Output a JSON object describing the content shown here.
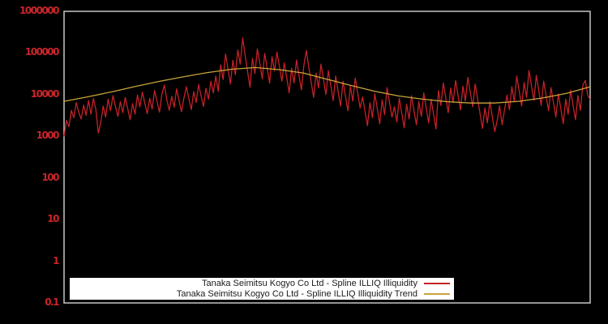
{
  "chart_data": {
    "type": "line",
    "title": "",
    "xlabel": "",
    "ylabel": "",
    "y_scale": "log",
    "ylim": [
      0.1,
      1000000
    ],
    "x_axis_labels_visible": false,
    "grid": false,
    "yticks": [
      "1000000",
      "100000",
      "10000",
      "1000",
      "100",
      "10",
      "1",
      "0.1"
    ],
    "colors": {
      "background": "#000000",
      "frame": "#c6c6c6",
      "tick_label": "#c9252b",
      "series_red": "#c52127",
      "series_trend": "#c9a43a",
      "legend_background": "#ffffff",
      "legend_text": "#1a1a1a"
    },
    "legend": {
      "position": "bottom-center",
      "background": "#ffffff",
      "entries": [
        {
          "label": "Tanaka Seimitsu Kogyo Co Ltd - Spline ILLIQ Illiquidity",
          "color": "#c52127"
        },
        {
          "label": "Tanaka Seimitsu Kogyo Co Ltd - Spline ILLIQ Illiquidity Trend",
          "color": "#c9a43a"
        }
      ]
    },
    "series": [
      {
        "name": "Tanaka Seimitsu Kogyo Co Ltd - Spline ILLIQ Illiquidity",
        "color": "#c52127",
        "stroke_width": 1.3,
        "values": [
          1000,
          2400,
          1700,
          4200,
          2800,
          6500,
          3800,
          2600,
          5600,
          3200,
          7200,
          3400,
          8100,
          4400,
          1200,
          2100,
          5300,
          2900,
          7800,
          4100,
          9500,
          5200,
          3000,
          6800,
          3700,
          8600,
          4700,
          2500,
          6100,
          3400,
          9800,
          5100,
          11500,
          6300,
          3500,
          8200,
          4500,
          12600,
          6900,
          3800,
          10400,
          17000,
          7500,
          4200,
          9100,
          5000,
          13800,
          7200,
          3900,
          8400,
          15500,
          8000,
          4400,
          11800,
          6500,
          17600,
          9400,
          5200,
          14200,
          7800,
          21000,
          11000,
          28000,
          12000,
          52000,
          23000,
          95000,
          41000,
          18000,
          67000,
          30000,
          118000,
          54000,
          230000,
          88000,
          36000,
          15000,
          74000,
          32000,
          125000,
          57000,
          24000,
          98000,
          44000,
          19000,
          82000,
          37000,
          105000,
          48000,
          21000,
          58000,
          26000,
          11000,
          43000,
          19000,
          68000,
          29000,
          13000,
          50000,
          115000,
          46000,
          20000,
          8600,
          33000,
          14500,
          54000,
          24000,
          10000,
          38000,
          16500,
          7200,
          28000,
          12000,
          5300,
          21000,
          9200,
          4100,
          16000,
          7000,
          25000,
          11000,
          4800,
          8800,
          3900,
          1800,
          6400,
          2800,
          10500,
          4600,
          2000,
          7500,
          3300,
          14800,
          6500,
          2900,
          5100,
          2200,
          8200,
          3600,
          1600,
          5900,
          2600,
          9400,
          4100,
          1900,
          6800,
          3000,
          11000,
          4800,
          2100,
          7700,
          3400,
          1500,
          12500,
          5500,
          19000,
          8400,
          3700,
          14500,
          6400,
          22000,
          9700,
          4300,
          16000,
          7000,
          26000,
          11500,
          5100,
          18000,
          8000,
          3500,
          1550,
          4800,
          2100,
          6800,
          3000,
          1300,
          2400,
          5400,
          1900,
          4300,
          9700,
          4300,
          15500,
          6800,
          28000,
          12000,
          5300,
          19500,
          8600,
          38000,
          16500,
          7300,
          29000,
          12500,
          5500,
          21000,
          9300,
          4100,
          14800,
          6500,
          2900,
          10400,
          4600,
          2000,
          7800,
          3400,
          12800,
          5600,
          2500,
          9500,
          4200,
          16800,
          22000,
          9800,
          7500
        ]
      },
      {
        "name": "Tanaka Seimitsu Kogyo Co Ltd - Spline ILLIQ Illiquidity Trend",
        "color": "#c9a43a",
        "stroke_width": 1.3,
        "values": [
          6900,
          8900,
          11700,
          15800,
          20900,
          26900,
          33900,
          40700,
          44700,
          39800,
          33100,
          23400,
          16600,
          12000,
          9300,
          7800,
          6800,
          6300,
          6300,
          6900,
          8300,
          10700,
          15500
        ]
      }
    ]
  }
}
